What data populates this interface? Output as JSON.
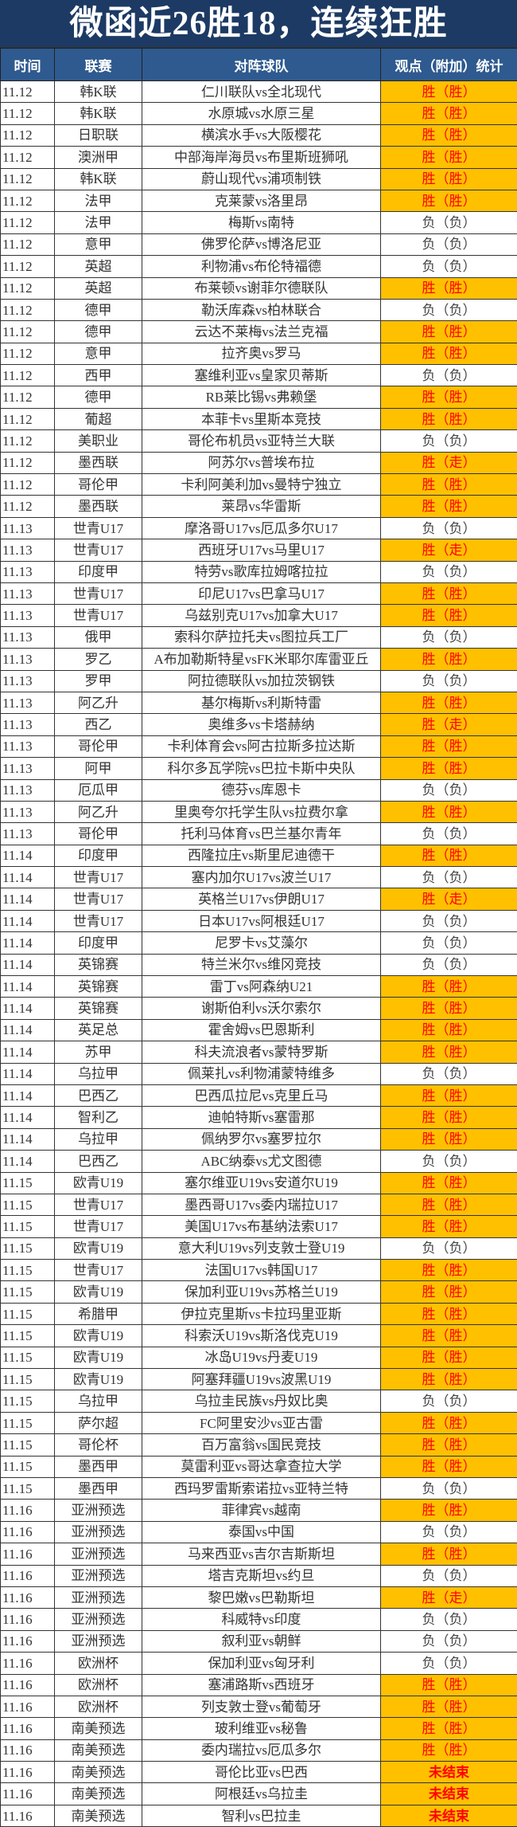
{
  "title": "微函近26胜18，连续狂胜",
  "headers": [
    "时间",
    "联赛",
    "对阵球队",
    "观点（附加）统计"
  ],
  "colors": {
    "title_bg": "#1d3a64",
    "header_bg": "#2e5a8f",
    "highlight_bg": "#ffc000",
    "highlight_text": "#ff0000"
  },
  "rows": [
    [
      "11.12",
      "韩K联",
      "仁川联队vs全北现代",
      "胜（胜）"
    ],
    [
      "11.12",
      "韩K联",
      "水原城vs水原三星",
      "胜（胜）"
    ],
    [
      "11.12",
      "日职联",
      "横滨水手vs大阪樱花",
      "胜（胜）"
    ],
    [
      "11.12",
      "澳洲甲",
      "中部海岸海员vs布里斯班狮吼",
      "胜（胜）"
    ],
    [
      "11.12",
      "韩K联",
      "蔚山现代vs浦项制铁",
      "胜（胜）"
    ],
    [
      "11.12",
      "法甲",
      "克莱蒙vs洛里昂",
      "胜（胜）"
    ],
    [
      "11.12",
      "法甲",
      "梅斯vs南特",
      "负（负）"
    ],
    [
      "11.12",
      "意甲",
      "佛罗伦萨vs博洛尼亚",
      "负（负）"
    ],
    [
      "11.12",
      "英超",
      "利物浦vs布伦特福德",
      "负（负）"
    ],
    [
      "11.12",
      "英超",
      "布莱顿vs谢菲尔德联队",
      "胜（胜）"
    ],
    [
      "11.12",
      "德甲",
      "勒沃库森vs柏林联合",
      "负（负）"
    ],
    [
      "11.12",
      "德甲",
      "云达不莱梅vs法兰克福",
      "胜（胜）"
    ],
    [
      "11.12",
      "意甲",
      "拉齐奥vs罗马",
      "胜（胜）"
    ],
    [
      "11.12",
      "西甲",
      "塞维利亚vs皇家贝蒂斯",
      "负（负）"
    ],
    [
      "11.12",
      "德甲",
      "RB莱比锡vs弗赖堡",
      "胜（胜）"
    ],
    [
      "11.12",
      "葡超",
      "本菲卡vs里斯本竞技",
      "胜（胜）"
    ],
    [
      "11.12",
      "美职业",
      "哥伦布机员vs亚特兰大联",
      "负（负）"
    ],
    [
      "11.12",
      "墨西联",
      "阿苏尔vs普埃布拉",
      "胜（走）"
    ],
    [
      "11.12",
      "哥伦甲",
      "卡利阿美利加vs曼特宁独立",
      "胜（胜）"
    ],
    [
      "11.12",
      "墨西联",
      "莱昂vs华雷斯",
      "胜（胜）"
    ],
    [
      "11.13",
      "世青U17",
      "摩洛哥U17vs厄瓜多尔U17",
      "负（负）"
    ],
    [
      "11.13",
      "世青U17",
      "西班牙U17vs马里U17",
      "胜（走）"
    ],
    [
      "11.13",
      "印度甲",
      "特劳vs歌库拉姆喀拉拉",
      "负（负）"
    ],
    [
      "11.13",
      "世青U17",
      "印尼U17vs巴拿马U17",
      "胜（胜）"
    ],
    [
      "11.13",
      "世青U17",
      "乌兹别克U17vs加拿大U17",
      "胜（胜）"
    ],
    [
      "11.13",
      "俄甲",
      "索科尔萨拉托夫vs图拉兵工厂",
      "负（负）"
    ],
    [
      "11.13",
      "罗乙",
      "A布加勒斯特星vsFK米耶尔库雷亚丘",
      "胜（胜）"
    ],
    [
      "11.13",
      "罗甲",
      "阿拉德联队vs加拉茨钢铁",
      "负（负）"
    ],
    [
      "11.13",
      "阿乙升",
      "基尔梅斯vs利斯特雷",
      "胜（胜）"
    ],
    [
      "11.13",
      "西乙",
      "奥维多vs卡塔赫纳",
      "胜（走）"
    ],
    [
      "11.13",
      "哥伦甲",
      "卡利体育会vs阿古拉斯多拉达斯",
      "胜（胜）"
    ],
    [
      "11.13",
      "阿甲",
      "科尔多瓦学院vs巴拉卡斯中央队",
      "胜（胜）"
    ],
    [
      "11.13",
      "厄瓜甲",
      "德芬vs库恩卡",
      "负（负）"
    ],
    [
      "11.13",
      "阿乙升",
      "里奥夸尔托学生队vs拉费尔拿",
      "胜（胜）"
    ],
    [
      "11.13",
      "哥伦甲",
      "托利马体育vs巴兰基尔青年",
      "负（负）"
    ],
    [
      "11.14",
      "印度甲",
      "西隆拉庄vs斯里尼迪德干",
      "胜（胜）"
    ],
    [
      "11.14",
      "世青U17",
      "塞内加尔U17vs波兰U17",
      "负（负）"
    ],
    [
      "11.14",
      "世青U17",
      "英格兰U17vs伊朗U17",
      "胜（走）"
    ],
    [
      "11.14",
      "世青U17",
      "日本U17vs阿根廷U17",
      "负（负）"
    ],
    [
      "11.14",
      "印度甲",
      "尼罗卡vs艾藻尔",
      "负（负）"
    ],
    [
      "11.14",
      "英锦赛",
      "特兰米尔vs维冈竞技",
      "负（负）"
    ],
    [
      "11.14",
      "英锦赛",
      "雷丁vs阿森纳U21",
      "胜（胜）"
    ],
    [
      "11.14",
      "英锦赛",
      "谢斯伯利vs沃尔索尔",
      "胜（胜）"
    ],
    [
      "11.14",
      "英足总",
      "霍舍姆vs巴恩斯利",
      "胜（胜）"
    ],
    [
      "11.14",
      "苏甲",
      "科夫流浪者vs蒙特罗斯",
      "胜（胜）"
    ],
    [
      "11.14",
      "乌拉甲",
      "佩莱扎vs利物浦蒙特维多",
      "负（负）"
    ],
    [
      "11.14",
      "巴西乙",
      "巴西瓜拉尼vs克里丘马",
      "胜（胜）"
    ],
    [
      "11.14",
      "智利乙",
      "迪帕特斯vs塞雷那",
      "胜（胜）"
    ],
    [
      "11.14",
      "乌拉甲",
      "佩纳罗尔vs塞罗拉尔",
      "胜（胜）"
    ],
    [
      "11.14",
      "巴西乙",
      "ABC纳泰vs尤文图德",
      "负（负）"
    ],
    [
      "11.15",
      "欧青U19",
      "塞尔维亚U19vs安道尔U19",
      "胜（胜）"
    ],
    [
      "11.15",
      "世青U17",
      "墨西哥U17vs委内瑞拉U17",
      "胜（胜）"
    ],
    [
      "11.15",
      "世青U17",
      "美国U17vs布基纳法索U17",
      "胜（胜）"
    ],
    [
      "11.15",
      "欧青U19",
      "意大利U19vs列支敦士登U19",
      "负（负）"
    ],
    [
      "11.15",
      "世青U17",
      "法国U17vs韩国U17",
      "胜（胜）"
    ],
    [
      "11.15",
      "欧青U19",
      "保加利亚U19vs苏格兰U19",
      "胜（胜）"
    ],
    [
      "11.15",
      "希腊甲",
      "伊拉克里斯vs卡拉玛里亚斯",
      "胜（胜）"
    ],
    [
      "11.15",
      "欧青U19",
      "科索沃U19vs斯洛伐克U19",
      "胜（胜）"
    ],
    [
      "11.15",
      "欧青U19",
      "冰岛U19vs丹麦U19",
      "胜（胜）"
    ],
    [
      "11.15",
      "欧青U19",
      "阿塞拜疆U19vs波黑U19",
      "胜（胜）"
    ],
    [
      "11.15",
      "乌拉甲",
      "乌拉圭民族vs丹奴比奥",
      "负（负）"
    ],
    [
      "11.15",
      "萨尔超",
      "FC阿里安沙vs亚古雷",
      "胜（胜）"
    ],
    [
      "11.15",
      "哥伦杯",
      "百万富翁vs国民竞技",
      "胜（胜）"
    ],
    [
      "11.15",
      "墨西甲",
      "莫雷利亚vs哥达拿查拉大学",
      "胜（胜）"
    ],
    [
      "11.15",
      "墨西甲",
      "西玛罗雷斯索诺拉vs亚特兰特",
      "负（负）"
    ],
    [
      "11.16",
      "亚洲预选",
      "菲律宾vs越南",
      "胜（胜）"
    ],
    [
      "11.16",
      "亚洲预选",
      "泰国vs中国",
      "负（负）"
    ],
    [
      "11.16",
      "亚洲预选",
      "马来西亚vs吉尔吉斯斯坦",
      "胜（胜）"
    ],
    [
      "11.16",
      "亚洲预选",
      "塔吉克斯坦vs约旦",
      "负（负）"
    ],
    [
      "11.16",
      "亚洲预选",
      "黎巴嫩vs巴勒斯坦",
      "胜（走）"
    ],
    [
      "11.16",
      "亚洲预选",
      "科威特vs印度",
      "负（负）"
    ],
    [
      "11.16",
      "亚洲预选",
      "叙利亚vs朝鲜",
      "负（负）"
    ],
    [
      "11.16",
      "欧洲杯",
      "保加利亚vs匈牙利",
      "负（负）"
    ],
    [
      "11.16",
      "欧洲杯",
      "塞浦路斯vs西班牙",
      "胜（胜）"
    ],
    [
      "11.16",
      "欧洲杯",
      "列支敦士登vs葡萄牙",
      "胜（胜）"
    ],
    [
      "11.16",
      "南美预选",
      "玻利维亚vs秘鲁",
      "胜（胜）"
    ],
    [
      "11.16",
      "南美预选",
      "委内瑞拉vs厄瓜多尔",
      "胜（胜）"
    ],
    [
      "11.16",
      "南美预选",
      "哥伦比亚vs巴西",
      "未结束"
    ],
    [
      "11.16",
      "南美预选",
      "阿根廷vs乌拉圭",
      "未结束"
    ],
    [
      "11.16",
      "南美预选",
      "智利vs巴拉圭",
      "未结束"
    ]
  ]
}
